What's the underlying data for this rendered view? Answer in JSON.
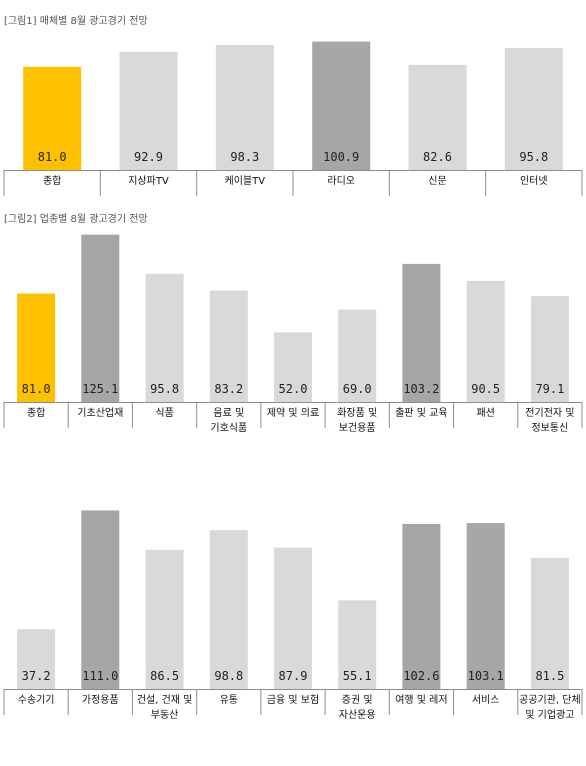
{
  "charts": [
    {
      "caption": "[그림1] 매체별 8월 광고경기 전망",
      "chart_data": {
        "type": "bar",
        "categories": [
          "종합",
          "지상파TV",
          "케이블TV",
          "라디오",
          "신문",
          "인터넷"
        ],
        "values": [
          81.0,
          92.9,
          98.3,
          100.9,
          82.6,
          95.8
        ],
        "value_labels": [
          "81.0",
          "92.9",
          "98.3",
          "100.9",
          "82.6",
          "95.8"
        ],
        "category_lines": [
          [
            "종합"
          ],
          [
            "지상파TV"
          ],
          [
            "케이블TV"
          ],
          [
            "라디오"
          ],
          [
            "신문"
          ],
          [
            "인터넷"
          ]
        ],
        "colors": [
          "#ffc000",
          "#d9d9d9",
          "#d9d9d9",
          "#a6a6a6",
          "#d9d9d9",
          "#d9d9d9"
        ],
        "title": "",
        "xlabel": "",
        "ylabel": "",
        "ylim": [
          0,
          110
        ],
        "grid": false
      }
    },
    {
      "caption": "[그림2] 업종별 8월 광고경기 전망",
      "chart_data": {
        "type": "bar",
        "categories": [
          "종합",
          "기초산업재",
          "식품",
          "음료 및 기호식품",
          "제약 및 의료",
          "화장품 및 보건용품",
          "출판 및 교육",
          "패션",
          "전기전자 및 정보통신"
        ],
        "values": [
          81.0,
          125.1,
          95.8,
          83.2,
          52.0,
          69.0,
          103.2,
          90.5,
          79.1
        ],
        "value_labels": [
          "81.0",
          "125.1",
          "95.8",
          "83.2",
          "52.0",
          "69.0",
          "103.2",
          "90.5",
          "79.1"
        ],
        "category_lines": [
          [
            "종합"
          ],
          [
            "기초산업재"
          ],
          [
            "식품"
          ],
          [
            "음료 및",
            "기호식품"
          ],
          [
            "제약 및 의료"
          ],
          [
            "화장품 및",
            "보건용품"
          ],
          [
            "출판 및 교육"
          ],
          [
            "패션"
          ],
          [
            "전기전자 및",
            "정보통신"
          ]
        ],
        "colors": [
          "#ffc000",
          "#a6a6a6",
          "#d9d9d9",
          "#d9d9d9",
          "#d9d9d9",
          "#d9d9d9",
          "#a6a6a6",
          "#d9d9d9",
          "#d9d9d9"
        ],
        "title": "",
        "xlabel": "",
        "ylabel": "",
        "ylim": [
          0,
          130
        ],
        "grid": false
      }
    },
    {
      "caption": "",
      "chart_data": {
        "type": "bar",
        "categories": [
          "수송기기",
          "가정용품",
          "건설, 건재 및 부동산",
          "유통",
          "금융 및 보험",
          "증권 및 자산운용",
          "여행 및 레저",
          "서비스",
          "공공기관, 단체 및 기업광고"
        ],
        "values": [
          37.2,
          111.0,
          86.5,
          98.8,
          87.9,
          55.1,
          102.6,
          103.1,
          81.5
        ],
        "value_labels": [
          "37.2",
          "111.0",
          "86.5",
          "98.8",
          "87.9",
          "55.1",
          "102.6",
          "103.1",
          "81.5"
        ],
        "category_lines": [
          [
            "수송기기"
          ],
          [
            "가정용품"
          ],
          [
            "건설, 건재 및",
            "부동산"
          ],
          [
            "유통"
          ],
          [
            "금융 및 보험"
          ],
          [
            "증권 및",
            "자산운용"
          ],
          [
            "여행 및 레저"
          ],
          [
            "서비스"
          ],
          [
            "공공기관, 단체",
            "및 기업광고"
          ]
        ],
        "colors": [
          "#d9d9d9",
          "#a6a6a6",
          "#d9d9d9",
          "#d9d9d9",
          "#d9d9d9",
          "#d9d9d9",
          "#a6a6a6",
          "#a6a6a6",
          "#d9d9d9"
        ],
        "title": "",
        "xlabel": "",
        "ylabel": "",
        "ylim": [
          0,
          115
        ],
        "grid": false
      }
    }
  ]
}
